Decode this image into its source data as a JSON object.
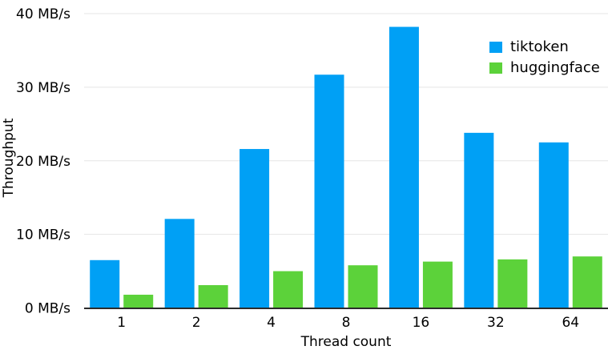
{
  "chart_data": {
    "type": "bar",
    "xlabel": "Thread count",
    "ylabel": "Throughput",
    "categories": [
      "1",
      "2",
      "4",
      "8",
      "16",
      "32",
      "64"
    ],
    "series": [
      {
        "name": "tiktoken",
        "color": "#00a0f5",
        "values": [
          6.5,
          12.1,
          21.6,
          31.7,
          38.2,
          23.8,
          22.5
        ]
      },
      {
        "name": "huggingface",
        "color": "#5cd23a",
        "values": [
          1.8,
          3.1,
          5.0,
          5.8,
          6.3,
          6.6,
          7.0
        ]
      }
    ],
    "ylim": [
      0,
      40
    ],
    "yticks": [
      0,
      10,
      20,
      30,
      40
    ],
    "ytick_labels": [
      "0 MB/s",
      "10 MB/s",
      "20 MB/s",
      "30 MB/s",
      "40 MB/s"
    ],
    "grid": true,
    "legend_position": "top-right"
  },
  "colors": {
    "background": "#ffffff",
    "gridline": "#e5e5e5",
    "axis_line": "#2b2b2b",
    "text": "#000000"
  }
}
